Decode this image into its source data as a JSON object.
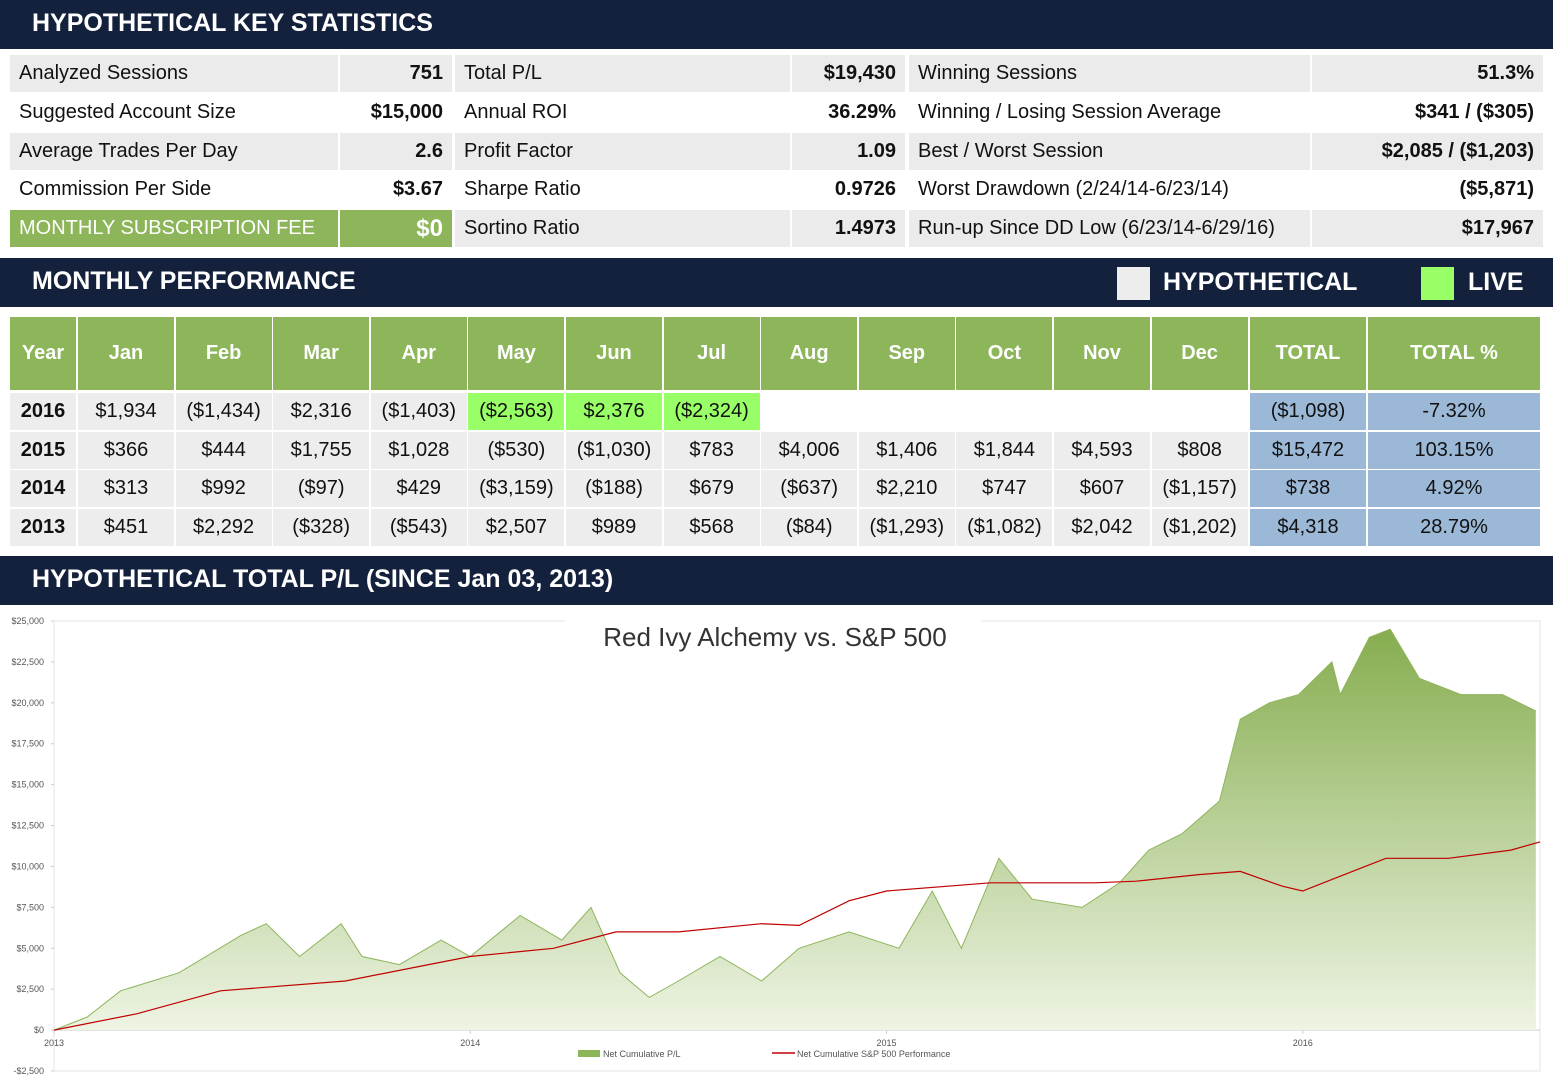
{
  "key_statistics": {
    "title": "HYPOTHETICAL KEY STATISTICS",
    "rows": [
      [
        "Analyzed Sessions",
        "751",
        "Total P/L",
        "$19,430",
        "Winning Sessions",
        "51.3%"
      ],
      [
        "Suggested Account Size",
        "$15,000",
        "Annual ROI",
        "36.29%",
        "Winning / Losing Session Average",
        "$341 / ($305)"
      ],
      [
        "Average Trades Per Day",
        "2.6",
        "Profit Factor",
        "1.09",
        "Best / Worst Session",
        "$2,085 / ($1,203)"
      ],
      [
        "Commission Per Side",
        "$3.67",
        "Sharpe Ratio",
        "0.9726",
        "Worst Drawdown (2/24/14-6/23/14)",
        "($5,871)"
      ],
      [
        "MONTHLY SUBSCRIPTION FEE",
        "$0",
        "Sortino Ratio",
        "1.4973",
        "Run-up Since DD Low (6/23/14-6/29/16)",
        "$17,967"
      ]
    ]
  },
  "monthly_performance": {
    "title": "MONTHLY PERFORMANCE",
    "legend": [
      {
        "label": "HYPOTHETICAL",
        "color": "#ededed"
      },
      {
        "label": "LIVE",
        "color": "#99ff66"
      }
    ],
    "columns": [
      "Year",
      "Jan",
      "Feb",
      "Mar",
      "Apr",
      "May",
      "Jun",
      "Jul",
      "Aug",
      "Sep",
      "Oct",
      "Nov",
      "Dec",
      "TOTAL",
      "TOTAL %"
    ],
    "rows": [
      {
        "year": "2016",
        "cells": [
          {
            "text": "$1,934"
          },
          {
            "text": "($1,434)"
          },
          {
            "text": "$2,316"
          },
          {
            "text": "($1,403)"
          },
          {
            "text": "($2,563)",
            "live": true
          },
          {
            "text": "$2,376",
            "live": true
          },
          {
            "text": "($2,324)",
            "live": true
          }
        ],
        "total": "($1,098)",
        "total_pct": "-7.32%"
      },
      {
        "year": "2015",
        "cells": [
          {
            "text": "$366"
          },
          {
            "text": "$444"
          },
          {
            "text": "$1,755"
          },
          {
            "text": "$1,028"
          },
          {
            "text": "($530)"
          },
          {
            "text": "($1,030)"
          },
          {
            "text": "$783"
          },
          {
            "text": "$4,006"
          },
          {
            "text": "$1,406"
          },
          {
            "text": "$1,844"
          },
          {
            "text": "$4,593"
          },
          {
            "text": "$808"
          }
        ],
        "total": "$15,472",
        "total_pct": "103.15%"
      },
      {
        "year": "2014",
        "cells": [
          {
            "text": "$313"
          },
          {
            "text": "$992"
          },
          {
            "text": "($97)"
          },
          {
            "text": "$429"
          },
          {
            "text": "($3,159)"
          },
          {
            "text": "($188)"
          },
          {
            "text": "$679"
          },
          {
            "text": "($637)"
          },
          {
            "text": "$2,210"
          },
          {
            "text": "$747"
          },
          {
            "text": "$607"
          },
          {
            "text": "($1,157)"
          }
        ],
        "total": "$738",
        "total_pct": "4.92%"
      },
      {
        "year": "2013",
        "cells": [
          {
            "text": "$451"
          },
          {
            "text": "$2,292"
          },
          {
            "text": "($328)"
          },
          {
            "text": "($543)"
          },
          {
            "text": "$2,507"
          },
          {
            "text": "$989"
          },
          {
            "text": "$568"
          },
          {
            "text": "($84)"
          },
          {
            "text": "($1,293)"
          },
          {
            "text": "($1,082)"
          },
          {
            "text": "$2,042"
          },
          {
            "text": "($1,202)"
          }
        ],
        "total": "$4,318",
        "total_pct": "28.79%"
      }
    ]
  },
  "chart_section": {
    "title": "HYPOTHETICAL TOTAL P/L (SINCE Jan 03, 2013)"
  },
  "chart_data": {
    "type": "area",
    "title": "Red Ivy Alchemy vs. S&P 500",
    "xlim": [
      2013,
      2016.57
    ],
    "xticks": [
      2013,
      2014,
      2015,
      2016
    ],
    "ylim": [
      -2500,
      25000
    ],
    "yticks": [
      {
        "value": -2500,
        "label": "-$2,500"
      },
      {
        "value": 0,
        "label": "$0"
      },
      {
        "value": 2500,
        "label": "$2,500"
      },
      {
        "value": 5000,
        "label": "$5,000"
      },
      {
        "value": 7500,
        "label": "$7,500"
      },
      {
        "value": 10000,
        "label": "$10,000"
      },
      {
        "value": 12500,
        "label": "$12,500"
      },
      {
        "value": 15000,
        "label": "$15,000"
      },
      {
        "value": 17500,
        "label": "$17,500"
      },
      {
        "value": 20000,
        "label": "$20,000"
      },
      {
        "value": 22500,
        "label": "$22,500"
      },
      {
        "value": 25000,
        "label": "$25,000"
      }
    ],
    "grid": false,
    "series": [
      {
        "name": "Net Cumulative P/L",
        "color": "#8db55a",
        "x": [
          2013,
          2013.08,
          2013.16,
          2013.3,
          2013.45,
          2013.51,
          2013.59,
          2013.69,
          2013.74,
          2013.83,
          2013.93,
          2014,
          2014.12,
          2014.22,
          2014.29,
          2014.36,
          2014.43,
          2014.5,
          2014.6,
          2014.7,
          2014.79,
          2014.91,
          2015.03,
          2015.11,
          2015.18,
          2015.27,
          2015.35,
          2015.47,
          2015.56,
          2015.63,
          2015.71,
          2015.8,
          2015.85,
          2015.92,
          2015.99,
          2016.07,
          2016.09,
          2016.16,
          2016.21,
          2016.28,
          2016.38,
          2016.48,
          2016.56
        ],
        "values": [
          0,
          800,
          2400,
          3500,
          5800,
          6500,
          4500,
          6500,
          4500,
          4000,
          5500,
          4500,
          7000,
          5500,
          7500,
          3500,
          2000,
          3000,
          4500,
          3000,
          5000,
          6000,
          5000,
          8500,
          5000,
          10500,
          8000,
          7500,
          9000,
          11000,
          12000,
          14000,
          19000,
          20000,
          20500,
          22500,
          20500,
          24000,
          24500,
          21500,
          20500,
          20500,
          19500
        ]
      },
      {
        "name": "Net Cumulative S&P 500 Performance",
        "color": "#c00000",
        "x": [
          2013,
          2013.2,
          2013.4,
          2013.7,
          2013.9,
          2014,
          2014.2,
          2014.35,
          2014.5,
          2014.7,
          2014.79,
          2014.91,
          2015,
          2015.25,
          2015.5,
          2015.6,
          2015.75,
          2015.85,
          2015.95,
          2016,
          2016.1,
          2016.2,
          2016.35,
          2016.5,
          2016.57
        ],
        "values": [
          0,
          1000,
          2400,
          3000,
          4000,
          4500,
          5000,
          6000,
          6000,
          6500,
          6400,
          7900,
          8500,
          9000,
          9000,
          9100,
          9500,
          9700,
          8800,
          8500,
          9500,
          10500,
          10500,
          11000,
          11500
        ]
      }
    ]
  }
}
